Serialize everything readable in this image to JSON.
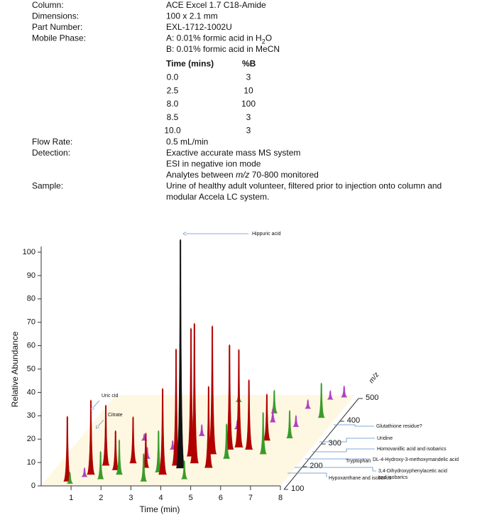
{
  "method": {
    "rows": [
      {
        "label": "Column:",
        "lines": [
          [
            "ACE Excel 1.7 C18-Amide"
          ]
        ]
      },
      {
        "label": "Dimensions:",
        "lines": [
          [
            "100 x 2.1 mm"
          ]
        ]
      },
      {
        "label": "Part Number:",
        "lines": [
          [
            "EXL-1712-1002U"
          ]
        ]
      },
      {
        "label": "Mobile Phase:",
        "lines": [
          [
            "A: 0.01% formic acid in H",
            {
              "text": "2",
              "style": "sub"
            },
            "O"
          ],
          [
            "B: 0.01% formic acid in MeCN"
          ]
        ],
        "gradient": {
          "columns": [
            "Time (mins)",
            "%B"
          ],
          "rows": [
            [
              "0.0",
              3
            ],
            [
              "2.5",
              10
            ],
            [
              "8.0",
              100
            ],
            [
              "8.5",
              3
            ],
            [
              "10.0",
              3
            ]
          ]
        }
      },
      {
        "label": "Flow Rate:",
        "lines": [
          [
            "0.5 mL/min"
          ]
        ]
      },
      {
        "label": "Detection:",
        "lines": [
          [
            "Exactive accurate mass MS system"
          ],
          [
            "ESI in negative ion mode"
          ],
          [
            "Analytes between ",
            {
              "text": "m/z",
              "style": "italic"
            },
            " 70-800 monitored"
          ]
        ]
      },
      {
        "label": "Sample:",
        "lines": [
          [
            "Urine of healthy adult volunteer, filtered prior to injection onto column and"
          ],
          [
            "modular Accela LC system."
          ]
        ]
      }
    ]
  },
  "chart_data": {
    "type": "waterfall3d",
    "xlabel": "Time (min)",
    "ylabel": "Relative Abundance",
    "zlabel": "m/z",
    "xlim": [
      0,
      8
    ],
    "xticks": [
      1,
      2,
      3,
      4,
      5,
      6,
      7,
      8
    ],
    "ylim": [
      0,
      100
    ],
    "yticks": [
      0,
      10,
      20,
      30,
      40,
      50,
      60,
      70,
      80,
      90,
      100
    ],
    "zlim": [
      100,
      500
    ],
    "zticks": [
      100,
      200,
      300,
      400,
      500
    ],
    "annotations": [
      "Hippuric acid",
      "Uric cid",
      "Citrate",
      "Glutathione residue?",
      "Uridine",
      "Homovanillic acid  and isobarics",
      "DL-4-Hydroxy-3-methoxymandelic acid",
      "Tryptophan",
      "3,4-Dihydroxyphenylacetic acid",
      "and isobarics",
      "Hypoxanthane and isobarics"
    ],
    "peaks": [
      {
        "x": 4.17,
        "z": 178,
        "value": 98,
        "color": "#111111"
      },
      {
        "x": 0.75,
        "z": 120,
        "value": 28,
        "color": "#b00000"
      },
      {
        "x": 1.35,
        "z": 150,
        "value": 32,
        "color": "#b00000"
      },
      {
        "x": 1.6,
        "z": 190,
        "value": 26,
        "color": "#b00000"
      },
      {
        "x": 2.05,
        "z": 170,
        "value": 17,
        "color": "#b00000"
      },
      {
        "x": 2.45,
        "z": 200,
        "value": 20,
        "color": "#b00000"
      },
      {
        "x": 3.0,
        "z": 180,
        "value": 15,
        "color": "#b00000"
      },
      {
        "x": 3.75,
        "z": 150,
        "value": 37,
        "color": "#b00000"
      },
      {
        "x": 3.95,
        "z": 190,
        "value": 50,
        "color": "#b00000"
      },
      {
        "x": 4.2,
        "z": 230,
        "value": 55,
        "color": "#b00000"
      },
      {
        "x": 4.5,
        "z": 200,
        "value": 60,
        "color": "#b00000"
      },
      {
        "x": 4.85,
        "z": 240,
        "value": 55,
        "color": "#b00000"
      },
      {
        "x": 5.1,
        "z": 180,
        "value": 35,
        "color": "#b00000"
      },
      {
        "x": 5.3,
        "z": 260,
        "value": 45,
        "color": "#b00000"
      },
      {
        "x": 5.55,
        "z": 270,
        "value": 42,
        "color": "#b00000"
      },
      {
        "x": 5.95,
        "z": 260,
        "value": 30,
        "color": "#b00000"
      },
      {
        "x": 6.3,
        "z": 300,
        "value": 20,
        "color": "#b00000"
      },
      {
        "x": 0.9,
        "z": 110,
        "value": 5,
        "color": "#3a9b2a"
      },
      {
        "x": 1.8,
        "z": 130,
        "value": 12,
        "color": "#3a9b2a"
      },
      {
        "x": 2.3,
        "z": 150,
        "value": 15,
        "color": "#3a9b2a"
      },
      {
        "x": 3.3,
        "z": 120,
        "value": 12,
        "color": "#3a9b2a"
      },
      {
        "x": 3.55,
        "z": 160,
        "value": 18,
        "color": "#3a9b2a"
      },
      {
        "x": 4.6,
        "z": 130,
        "value": 8,
        "color": "#3a9b2a"
      },
      {
        "x": 5.45,
        "z": 220,
        "value": 15,
        "color": "#3a9b2a"
      },
      {
        "x": 6.55,
        "z": 240,
        "value": 18,
        "color": "#3a9b2a"
      },
      {
        "x": 7.0,
        "z": 310,
        "value": 12,
        "color": "#3a9b2a"
      },
      {
        "x": 5.8,
        "z": 420,
        "value": 10,
        "color": "#3a9b2a"
      },
      {
        "x": 7.5,
        "z": 400,
        "value": 15,
        "color": "#3a9b2a"
      },
      {
        "x": 4.3,
        "z": 470,
        "value": 4,
        "color": "#3a9b2a"
      },
      {
        "x": 1.2,
        "z": 140,
        "value": 4,
        "color": "#b040c0"
      },
      {
        "x": 2.8,
        "z": 220,
        "value": 5,
        "color": "#b040c0"
      },
      {
        "x": 3.4,
        "z": 260,
        "value": 4,
        "color": "#b040c0"
      },
      {
        "x": 4.0,
        "z": 320,
        "value": 5,
        "color": "#b040c0"
      },
      {
        "x": 5.0,
        "z": 350,
        "value": 4,
        "color": "#b040c0"
      },
      {
        "x": 6.0,
        "z": 380,
        "value": 6,
        "color": "#b040c0"
      },
      {
        "x": 6.8,
        "z": 440,
        "value": 4,
        "color": "#b040c0"
      },
      {
        "x": 7.3,
        "z": 480,
        "value": 4,
        "color": "#b040c0"
      },
      {
        "x": 7.7,
        "z": 490,
        "value": 5,
        "color": "#b040c0"
      },
      {
        "x": 2.2,
        "z": 300,
        "value": 3,
        "color": "#b040c0"
      },
      {
        "x": 6.9,
        "z": 360,
        "value": 5,
        "color": "#b040c0"
      }
    ]
  }
}
